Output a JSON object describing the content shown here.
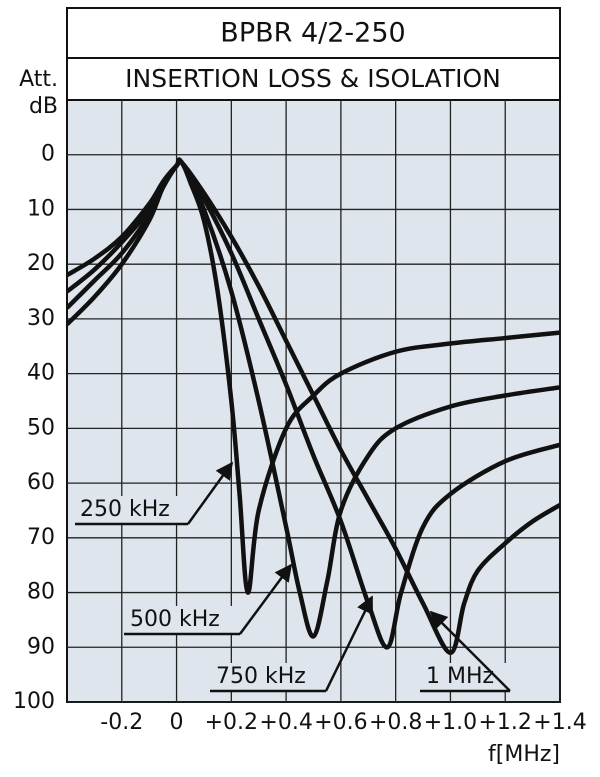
{
  "chart_data": {
    "type": "line",
    "title": "BPBR 4/2-250",
    "subtitle": "INSERTION LOSS & ISOLATION",
    "y_label": "Att.",
    "y_unit": "dB",
    "x_label": "f[MHz]",
    "xlim": [
      -0.4,
      1.4
    ],
    "ylim": [
      -10,
      100
    ],
    "y_reversed": true,
    "grid": true,
    "xticks": [
      -0.2,
      0,
      {
        "value": 0.2,
        "label": "+0.2"
      },
      {
        "value": 0.4,
        "label": "+0.4"
      },
      {
        "value": 0.6,
        "label": "+0.6"
      },
      {
        "value": 0.8,
        "label": "+0.8"
      },
      {
        "value": 1.0,
        "label": "+1.0"
      },
      {
        "value": 1.2,
        "label": "+1.2"
      },
      {
        "value": 1.4,
        "label": "+1.4"
      }
    ],
    "yticks": [
      0,
      10,
      20,
      30,
      40,
      50,
      60,
      70,
      80,
      90,
      100
    ],
    "series": [
      {
        "name": "250 kHz",
        "color": "#111111",
        "x": [
          -0.4,
          -0.3,
          -0.2,
          -0.1,
          -0.05,
          0.0,
          0.02,
          0.05,
          0.1,
          0.15,
          0.2,
          0.23,
          0.26,
          0.3,
          0.4,
          0.5,
          0.6,
          0.8,
          1.0,
          1.2,
          1.4
        ],
        "values": [
          31,
          26,
          20,
          12,
          6,
          2,
          1.5,
          5,
          12,
          25,
          45,
          62,
          80,
          65,
          50,
          44,
          40,
          36,
          34.5,
          33.5,
          32.5
        ]
      },
      {
        "name": "500 kHz",
        "color": "#111111",
        "x": [
          -0.4,
          -0.3,
          -0.2,
          -0.1,
          -0.05,
          0.0,
          0.02,
          0.1,
          0.2,
          0.3,
          0.4,
          0.45,
          0.5,
          0.55,
          0.6,
          0.7,
          0.8,
          1.0,
          1.2,
          1.4
        ],
        "values": [
          28,
          23,
          18,
          11,
          6,
          2,
          1.5,
          10,
          25,
          45,
          68,
          80,
          88,
          78,
          65,
          55,
          50,
          46,
          44,
          42.5
        ]
      },
      {
        "name": "750 kHz",
        "color": "#111111",
        "x": [
          -0.4,
          -0.3,
          -0.2,
          -0.1,
          -0.05,
          0.0,
          0.02,
          0.1,
          0.2,
          0.3,
          0.4,
          0.5,
          0.6,
          0.7,
          0.77,
          0.82,
          0.9,
          1.0,
          1.2,
          1.4
        ],
        "values": [
          25,
          21,
          16,
          10,
          5,
          2,
          1.5,
          8,
          18,
          30,
          42,
          55,
          67,
          82,
          90,
          80,
          68,
          62,
          56,
          53
        ]
      },
      {
        "name": "1 MHz",
        "color": "#111111",
        "x": [
          -0.4,
          -0.3,
          -0.2,
          -0.1,
          -0.05,
          0.0,
          0.02,
          0.1,
          0.2,
          0.3,
          0.4,
          0.5,
          0.6,
          0.7,
          0.8,
          0.9,
          1.0,
          1.05,
          1.1,
          1.2,
          1.3,
          1.4
        ],
        "values": [
          22,
          19,
          15,
          9,
          5,
          2,
          1.5,
          7,
          15,
          24,
          34,
          44,
          54,
          63,
          72,
          82,
          91,
          82,
          76,
          71,
          67,
          64
        ]
      }
    ]
  }
}
